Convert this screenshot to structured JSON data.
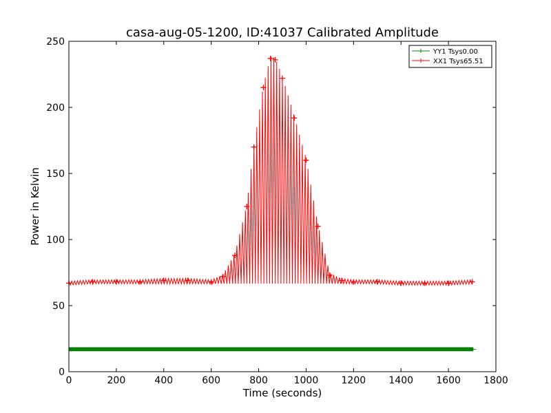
{
  "chart_data": {
    "type": "line",
    "title": "casa-aug-05-1200, ID:41037 Calibrated Amplitude",
    "xlabel": "Time (seconds)",
    "ylabel": "Power in Kelvin",
    "xlim": [
      0,
      1800
    ],
    "ylim": [
      0,
      250
    ],
    "xticks": [
      "0",
      "200",
      "400",
      "600",
      "800",
      "1000",
      "1200",
      "1400",
      "1600",
      "1800"
    ],
    "yticks": [
      "0",
      "50",
      "100",
      "150",
      "200",
      "250"
    ],
    "grid": false,
    "legend_position": "top-right",
    "series": [
      {
        "name": "YY1 Tsys0.00",
        "color": "#008000",
        "marker": "+",
        "x": [
          0,
          200,
          400,
          600,
          800,
          1000,
          1200,
          1400,
          1600,
          1705
        ],
        "y": [
          17,
          17,
          17,
          17,
          17,
          17,
          17,
          17,
          17,
          17
        ]
      },
      {
        "name": "XX1 Tsys65.51",
        "color": "#ff0000",
        "marker": "+",
        "x": [
          0,
          100,
          200,
          300,
          400,
          500,
          600,
          650,
          700,
          750,
          780,
          820,
          850,
          870,
          900,
          950,
          1000,
          1050,
          1100,
          1150,
          1200,
          1300,
          1400,
          1500,
          1600,
          1700
        ],
        "y": [
          67,
          68,
          68,
          68,
          69,
          69,
          68,
          72,
          88,
          125,
          170,
          215,
          237,
          236,
          222,
          192,
          160,
          110,
          73,
          69,
          68,
          68,
          67,
          67,
          67,
          68
        ]
      }
    ]
  }
}
